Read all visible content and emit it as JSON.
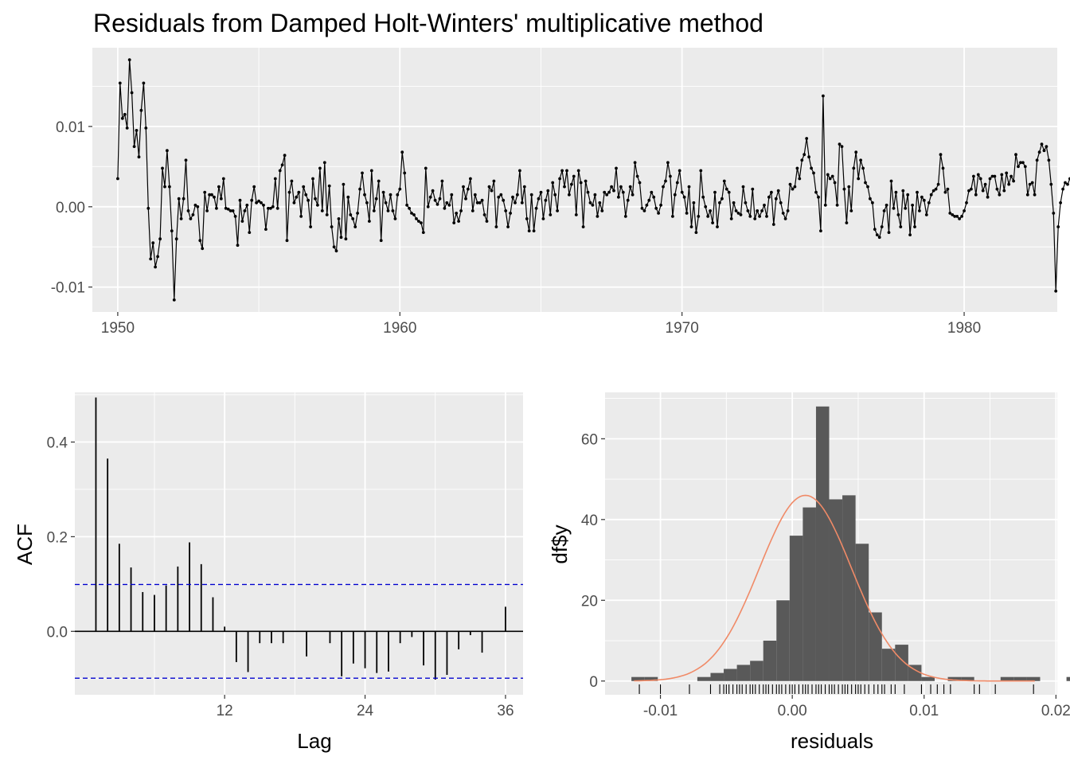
{
  "title": "Residuals from Damped Holt-Winters' multiplicative method",
  "colors": {
    "panel": "#ebebeb",
    "grid": "#ffffff",
    "line": "#000000",
    "bar": "#595959",
    "ci": "#0000cc",
    "density": "#f08a67",
    "tick_text": "#4d4d4d"
  },
  "chart_data": [
    {
      "id": "residuals",
      "type": "line",
      "title": "Residuals from Damped Holt-Winters' multiplicative method",
      "xlim": [
        1949.1,
        1983.3
      ],
      "ylim": [
        -0.0131,
        0.0198
      ],
      "x_ticks": [
        1950,
        1960,
        1970,
        1980
      ],
      "x_tick_labels": [
        "1950",
        "1960",
        "1970",
        "1980"
      ],
      "y_ticks": [
        -0.01,
        0.0,
        0.01
      ],
      "y_tick_labels": [
        "-0.01",
        "0.00",
        "0.01"
      ],
      "start": 1950.0,
      "frequency": 12,
      "values": [
        0.0035,
        0.0154,
        0.011,
        0.0115,
        0.0098,
        0.0183,
        0.0142,
        0.0075,
        0.0095,
        0.0062,
        0.012,
        0.0154,
        0.0098,
        -0.0002,
        -0.0065,
        -0.0045,
        -0.0075,
        -0.0062,
        -0.004,
        0.0048,
        0.0025,
        0.007,
        0.0025,
        -0.003,
        -0.0116,
        -0.004,
        0.001,
        -0.0015,
        0.001,
        0.0058,
        -0.0005,
        -0.0015,
        -0.001,
        0.0002,
        0.0,
        -0.0042,
        -0.0052,
        0.0018,
        -0.0005,
        0.0015,
        0.0015,
        0.0012,
        -0.0002,
        0.0025,
        0.001,
        0.0035,
        -0.0002,
        -0.0003,
        -0.0005,
        -0.0005,
        -0.0012,
        -0.0048,
        0.0008,
        -0.0018,
        -0.0005,
        0.0002,
        -0.0032,
        0.0008,
        0.0025,
        0.0005,
        0.0007,
        0.0005,
        0.0002,
        -0.0028,
        -0.0002,
        -0.0002,
        0.0,
        0.0035,
        -0.0002,
        0.0045,
        0.0052,
        0.0064,
        -0.0042,
        0.0018,
        0.0032,
        0.0005,
        0.0012,
        0.0018,
        -0.0012,
        0.0025,
        0.0015,
        0.0008,
        -0.0025,
        0.0035,
        0.001,
        0.0002,
        0.0048,
        -0.0005,
        0.0055,
        -0.001,
        0.0026,
        -0.0025,
        -0.005,
        -0.0055,
        -0.0015,
        -0.0038,
        0.0028,
        -0.004,
        0.0012,
        -0.001,
        -0.0015,
        -0.0025,
        -0.0008,
        0.0022,
        0.0042,
        0.0015,
        0.0005,
        -0.0018,
        0.0045,
        -0.0005,
        0.001,
        0.0032,
        -0.0042,
        0.0018,
        0.0005,
        -0.0005,
        0.0015,
        -0.0005,
        -0.0015,
        0.0015,
        0.0022,
        0.0068,
        0.0042,
        0.0002,
        -0.0002,
        -0.0008,
        -0.001,
        -0.0015,
        -0.0018,
        -0.002,
        -0.0032,
        0.0048,
        0.0,
        0.0012,
        0.002,
        0.0008,
        0.0003,
        0.001,
        0.0032,
        -0.0002,
        0.0005,
        0.0002,
        0.0015,
        -0.002,
        -0.0008,
        -0.0018,
        -0.0005,
        0.0025,
        0.001,
        0.0022,
        0.0035,
        -0.0005,
        0.0015,
        0.0005,
        0.0005,
        0.0008,
        -0.001,
        -0.0018,
        0.0025,
        0.002,
        0.0032,
        -0.0025,
        0.0012,
        0.0015,
        0.0008,
        -0.0005,
        -0.0025,
        -0.0008,
        0.0012,
        0.0005,
        0.0015,
        0.0045,
        0.0005,
        0.0025,
        -0.0015,
        -0.003,
        0.0015,
        -0.003,
        -0.0002,
        0.001,
        0.0018,
        -0.0015,
        0.0008,
        0.002,
        -0.001,
        0.003,
        0.0015,
        -0.0005,
        0.0035,
        0.0045,
        0.0025,
        0.0045,
        0.0015,
        0.0028,
        0.0038,
        -0.001,
        0.0045,
        0.003,
        -0.0025,
        0.0032,
        0.0018,
        0.0005,
        0.0002,
        0.0015,
        -0.0012,
        0.0005,
        -0.0005,
        0.0018,
        0.0015,
        0.0018,
        0.0025,
        0.002,
        0.0048,
        0.0012,
        0.0025,
        0.0018,
        -0.0012,
        0.0008,
        0.0025,
        0.0015,
        0.0055,
        0.0038,
        0.003,
        -0.0002,
        -0.0005,
        0.0002,
        0.0008,
        0.0018,
        0.0012,
        -0.0002,
        -0.0008,
        0.0002,
        0.0025,
        0.0032,
        0.0055,
        0.0038,
        -0.0012,
        0.0015,
        0.003,
        0.0045,
        0.0018,
        0.0012,
        -0.0008,
        0.0025,
        -0.0025,
        0.0005,
        -0.0032,
        -0.0012,
        0.0045,
        0.0012,
        0.0,
        -0.0012,
        -0.0005,
        -0.002,
        0.0018,
        -0.0025,
        0.0005,
        0.001,
        0.0032,
        0.0022,
        0.0018,
        -0.0015,
        0.0005,
        -0.0005,
        -0.0008,
        -0.001,
        0.0025,
        0.0005,
        -0.0005,
        -0.0012,
        0.0022,
        -0.0015,
        -0.0005,
        -0.0012,
        -0.0005,
        0.0002,
        -0.0012,
        0.0012,
        0.0018,
        -0.0022,
        0.001,
        0.002,
        0.0005,
        -0.0008,
        -0.0015,
        -0.0005,
        0.0028,
        0.0022,
        0.0025,
        0.0048,
        0.0035,
        0.0058,
        0.0065,
        0.0085,
        0.0062,
        0.0048,
        0.0042,
        0.0018,
        0.0012,
        -0.003,
        0.0138,
        0.0002,
        0.004,
        0.0035,
        0.0038,
        0.003,
        0.0002,
        0.0078,
        0.0075,
        0.0022,
        -0.002,
        0.0025,
        -0.0005,
        0.0048,
        0.0068,
        0.0035,
        0.0058,
        0.0048,
        0.003,
        0.0025,
        0.001,
        0.0005,
        -0.0028,
        -0.0035,
        -0.0038,
        -0.0025,
        -0.0005,
        0.0002,
        -0.0032,
        0.0032,
        -0.0002,
        0.0018,
        -0.001,
        -0.0025,
        0.002,
        -0.0002,
        0.0015,
        -0.0035,
        0.0002,
        -0.0025,
        0.0018,
        -0.0005,
        0.0012,
        0.0008,
        -0.001,
        0.0005,
        0.0015,
        0.002,
        0.0022,
        0.0028,
        0.0065,
        0.0048,
        0.0018,
        0.0022,
        -0.0008,
        -0.001,
        -0.0012,
        -0.0012,
        -0.0015,
        -0.0012,
        -0.0005,
        0.0005,
        0.002,
        0.0022,
        0.0038,
        0.0015,
        0.004,
        0.0035,
        0.002,
        0.0028,
        0.0012,
        0.0035,
        0.0038,
        0.0038,
        0.0022,
        0.0015,
        0.004,
        0.002,
        0.0042,
        0.0028,
        0.0038,
        0.0032,
        0.0065,
        0.005,
        0.0055,
        0.0055,
        0.005,
        0.0015,
        0.0028,
        0.003,
        0.0015,
        0.0058,
        0.0068,
        0.0078,
        0.007,
        0.0075,
        0.0058,
        0.0028,
        -0.0008,
        -0.0105,
        -0.0025,
        0.0005,
        0.0022,
        0.003,
        0.0028,
        0.0035,
        0.004,
        0.0025,
        -0.001,
        0.0018,
        0.0025,
        0.0018,
        0.003,
        -0.002,
        0.001,
        0.0025,
        0.0035,
        -0.0035,
        -0.0022,
        -0.0015,
        -0.0018,
        -0.0015,
        -0.0065,
        0.0005,
        0.0048,
        0.007,
        -0.0005,
        -0.0025,
        -0.0028
      ]
    },
    {
      "id": "acf",
      "type": "bar",
      "xlabel": "Lag",
      "ylabel": "ACF",
      "xlim": [
        -0.8,
        37.5
      ],
      "ylim": [
        -0.134,
        0.505
      ],
      "x_ticks": [
        12,
        24,
        36
      ],
      "x_tick_labels": [
        "12",
        "24",
        "36"
      ],
      "y_ticks": [
        0.0,
        0.2,
        0.4
      ],
      "y_tick_labels": [
        "0.0",
        "0.2",
        "0.4"
      ],
      "ci": 0.099,
      "lags": [
        1,
        2,
        3,
        4,
        5,
        6,
        7,
        8,
        9,
        10,
        11,
        12,
        13,
        14,
        15,
        16,
        17,
        18,
        19,
        20,
        21,
        22,
        23,
        24,
        25,
        26,
        27,
        28,
        29,
        30,
        31,
        32,
        33,
        34,
        35,
        36
      ],
      "values": [
        0.494,
        0.365,
        0.185,
        0.135,
        0.083,
        0.077,
        0.097,
        0.137,
        0.188,
        0.142,
        0.072,
        0.01,
        -0.065,
        -0.086,
        -0.025,
        -0.025,
        -0.025,
        0.0,
        -0.053,
        0.0,
        -0.025,
        -0.095,
        -0.068,
        -0.078,
        -0.088,
        -0.085,
        -0.025,
        -0.012,
        -0.072,
        -0.102,
        -0.092,
        -0.038,
        -0.008,
        -0.045,
        0.0,
        0.052
      ]
    },
    {
      "id": "histogram",
      "type": "bar",
      "xlabel": "residuals",
      "ylabel": "df$y",
      "xlim": [
        -0.0142,
        0.0201
      ],
      "ylim": [
        -3.4,
        71.5
      ],
      "x_ticks": [
        -0.01,
        0.0,
        0.01,
        0.02
      ],
      "x_tick_labels": [
        "-0.01",
        "0.00",
        "0.01",
        "0.02"
      ],
      "y_ticks": [
        0,
        20,
        40,
        60
      ],
      "y_tick_labels": [
        "0",
        "20",
        "40",
        "60"
      ],
      "bin_start": -0.0122,
      "bin_width": 0.001,
      "counts": [
        1,
        1,
        0,
        0,
        0,
        1,
        2,
        3,
        4,
        5,
        10,
        20,
        36,
        43,
        68,
        45,
        46,
        34,
        17,
        8,
        9,
        4,
        1,
        0,
        1,
        1,
        0,
        0,
        1,
        1,
        1,
        0,
        0,
        1
      ],
      "density_curve": {
        "mean": 0.001,
        "sd": 0.0035,
        "peak_count": 46
      },
      "rug": [
        -0.0116,
        -0.01,
        -0.0078,
        -0.0062,
        -0.0055,
        -0.0052,
        -0.005,
        -0.0048,
        -0.0045,
        -0.0042,
        -0.004,
        -0.0038,
        -0.0035,
        -0.0032,
        -0.003,
        -0.0028,
        -0.0025,
        -0.0022,
        -0.002,
        -0.0018,
        -0.0015,
        -0.0012,
        -0.001,
        -0.0008,
        -0.0005,
        -0.0002,
        0.0,
        0.0002,
        0.0005,
        0.0008,
        0.001,
        0.0012,
        0.0015,
        0.0018,
        0.002,
        0.0022,
        0.0025,
        0.0028,
        0.003,
        0.0032,
        0.0035,
        0.0038,
        0.004,
        0.0042,
        0.0045,
        0.0048,
        0.005,
        0.0052,
        0.0055,
        0.0058,
        0.0062,
        0.0065,
        0.0068,
        0.007,
        0.0075,
        0.0078,
        0.0085,
        0.0098,
        0.0105,
        0.011,
        0.0115,
        0.012,
        0.0138,
        0.0142,
        0.0154,
        0.0183
      ]
    }
  ]
}
